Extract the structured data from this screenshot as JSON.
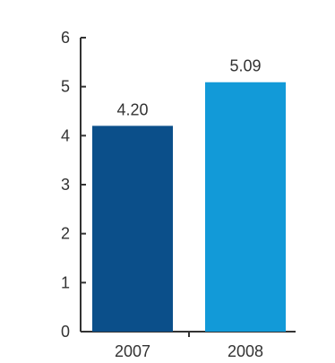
{
  "chart_data": {
    "type": "bar",
    "categories": [
      "2007",
      "2008"
    ],
    "values": [
      4.2,
      5.09
    ],
    "value_labels": [
      "4.20",
      "5.09"
    ],
    "ylim": [
      0,
      6
    ],
    "yticks": [
      "0",
      "1",
      "2",
      "3",
      "4",
      "5",
      "6"
    ],
    "colors": [
      "#0b4f8a",
      "#129ad8"
    ],
    "axis_color": "#333333",
    "grid": false,
    "legend": "none",
    "title": "",
    "xlabel": "",
    "ylabel": ""
  }
}
